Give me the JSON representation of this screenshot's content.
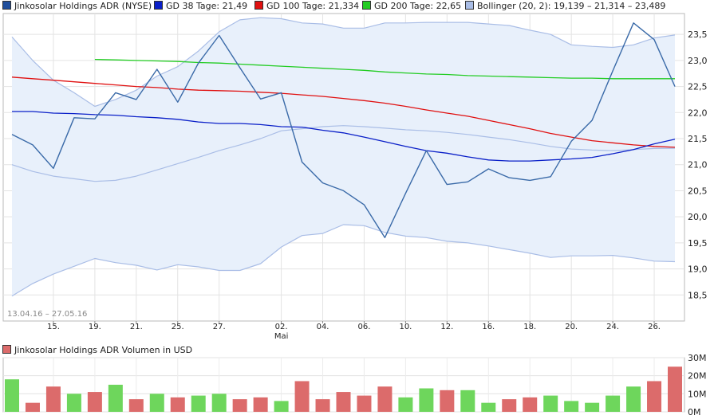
{
  "legend": [
    {
      "label": "Jinkosolar Holdings ADR (NYSE)",
      "color": "#1f4e9c"
    },
    {
      "label": "GD 38 Tage: 21,49",
      "color": "#0a1fc8"
    },
    {
      "label": "GD 100 Tage: 21,334",
      "color": "#e01010"
    },
    {
      "label": "GD 200 Tage: 22,65",
      "color": "#22cc22"
    },
    {
      "label": "Bollinger (20, 2): 19,139 – 21,314 – 23,489",
      "color": "#a9bde6"
    }
  ],
  "date_range": "13.04.16 – 27.05.16",
  "volume_label": "Jinkosolar Holdings ADR Volumen in USD",
  "colors": {
    "price": "#3a6aa8",
    "gd38": "#0a1fc8",
    "gd100": "#e01010",
    "gd200": "#22cc22",
    "band_fill": "#e8f0fb",
    "band_line": "#a9bde6",
    "vol_up": "#6ed65c",
    "vol_down": "#dc6b6b"
  },
  "chart_data": [
    {
      "type": "line",
      "title": "Jinkosolar Holdings ADR (NYSE)",
      "x": [
        "13.04",
        "14.04",
        "15.04",
        "18.04",
        "19.04",
        "20.04",
        "21.04",
        "22.04",
        "25.04",
        "26.04",
        "27.04",
        "28.04",
        "29.04",
        "02.05",
        "03.05",
        "04.05",
        "05.05",
        "06.05",
        "09.05",
        "10.05",
        "11.05",
        "12.05",
        "13.05",
        "16.05",
        "17.05",
        "18.05",
        "19.05",
        "20.05",
        "23.05",
        "24.05",
        "25.05",
        "26.05",
        "27.05"
      ],
      "xticks": [
        {
          "i": 2,
          "label": "15."
        },
        {
          "i": 4,
          "label": "19."
        },
        {
          "i": 6,
          "label": "21."
        },
        {
          "i": 8,
          "label": "25."
        },
        {
          "i": 10,
          "label": "27."
        },
        {
          "i": 13,
          "label": "02.",
          "sub": "Mai"
        },
        {
          "i": 15,
          "label": "04."
        },
        {
          "i": 17,
          "label": "06."
        },
        {
          "i": 19,
          "label": "10."
        },
        {
          "i": 21,
          "label": "12."
        },
        {
          "i": 23,
          "label": "16."
        },
        {
          "i": 25,
          "label": "18."
        },
        {
          "i": 27,
          "label": "20."
        },
        {
          "i": 29,
          "label": "24."
        },
        {
          "i": 31,
          "label": "26."
        }
      ],
      "ylim": [
        18.0,
        23.9
      ],
      "yticks": [
        "18,5",
        "19,0",
        "19,5",
        "20,0",
        "20,5",
        "21,0",
        "21,5",
        "22,0",
        "22,5",
        "23,0",
        "23,5"
      ],
      "ytick_values": [
        18.5,
        19.0,
        19.5,
        20.0,
        20.5,
        21.0,
        21.5,
        22.0,
        22.5,
        23.0,
        23.5
      ],
      "series": [
        {
          "name": "Jinkosolar Holdings ADR (NYSE)",
          "role": "price",
          "values": [
            21.58,
            21.38,
            20.93,
            21.9,
            21.88,
            22.38,
            22.25,
            22.83,
            22.2,
            22.95,
            23.48,
            22.86,
            22.26,
            22.38,
            21.05,
            20.65,
            20.5,
            20.23,
            19.6,
            20.45,
            21.27,
            20.62,
            20.67,
            20.92,
            20.75,
            20.7,
            20.77,
            21.45,
            21.85,
            22.8,
            23.72,
            23.4,
            22.5
          ]
        },
        {
          "name": "GD 38 Tage",
          "role": "gd38",
          "values": [
            22.02,
            22.02,
            21.99,
            21.98,
            21.96,
            21.95,
            21.92,
            21.9,
            21.87,
            21.82,
            21.79,
            21.79,
            21.77,
            21.73,
            21.72,
            21.66,
            21.61,
            21.53,
            21.44,
            21.35,
            21.27,
            21.22,
            21.15,
            21.09,
            21.07,
            21.07,
            21.09,
            21.11,
            21.14,
            21.21,
            21.29,
            21.4,
            21.49
          ]
        },
        {
          "name": "GD 100 Tage",
          "role": "gd100",
          "values": [
            22.68,
            22.65,
            22.62,
            22.59,
            22.56,
            22.53,
            22.5,
            22.48,
            22.45,
            22.43,
            22.42,
            22.41,
            22.39,
            22.37,
            22.34,
            22.31,
            22.27,
            22.23,
            22.18,
            22.12,
            22.05,
            21.99,
            21.93,
            21.85,
            21.77,
            21.69,
            21.6,
            21.53,
            21.46,
            21.42,
            21.38,
            21.35,
            21.334
          ]
        },
        {
          "name": "GD 200 Tage",
          "role": "gd200",
          "start": 4,
          "values": [
            null,
            null,
            null,
            null,
            23.02,
            23.01,
            23.0,
            22.99,
            22.98,
            22.96,
            22.95,
            22.93,
            22.91,
            22.89,
            22.87,
            22.85,
            22.83,
            22.81,
            22.78,
            22.76,
            22.74,
            22.73,
            22.71,
            22.7,
            22.69,
            22.68,
            22.67,
            22.66,
            22.66,
            22.65,
            22.65,
            22.65,
            22.65
          ]
        },
        {
          "name": "Bollinger oben",
          "role": "band_upper",
          "values": [
            23.45,
            23.0,
            22.62,
            22.38,
            22.12,
            22.25,
            22.43,
            22.7,
            22.88,
            23.18,
            23.55,
            23.78,
            23.82,
            23.8,
            23.72,
            23.7,
            23.62,
            23.62,
            23.72,
            23.72,
            23.73,
            23.73,
            23.73,
            23.7,
            23.67,
            23.58,
            23.5,
            23.3,
            23.27,
            23.25,
            23.3,
            23.43,
            23.489
          ]
        },
        {
          "name": "Bollinger Mitte",
          "role": "band_mid",
          "values": [
            21.0,
            20.87,
            20.78,
            20.73,
            20.68,
            20.7,
            20.78,
            20.9,
            21.02,
            21.14,
            21.27,
            21.38,
            21.5,
            21.65,
            21.69,
            21.73,
            21.75,
            21.73,
            21.7,
            21.67,
            21.65,
            21.62,
            21.58,
            21.53,
            21.48,
            21.42,
            21.35,
            21.3,
            21.28,
            21.27,
            21.29,
            21.31,
            21.314
          ]
        },
        {
          "name": "Bollinger unten",
          "role": "band_lower",
          "values": [
            18.48,
            18.72,
            18.9,
            19.05,
            19.2,
            19.12,
            19.07,
            18.98,
            19.08,
            19.04,
            18.97,
            18.97,
            19.1,
            19.42,
            19.64,
            19.68,
            19.85,
            19.83,
            19.7,
            19.63,
            19.6,
            19.53,
            19.5,
            19.44,
            19.37,
            19.3,
            19.22,
            19.25,
            19.25,
            19.26,
            19.21,
            19.15,
            19.139
          ]
        }
      ]
    },
    {
      "type": "bar",
      "title": "Jinkosolar Holdings ADR Volumen in USD",
      "ylim": [
        0,
        30
      ],
      "yticks": [
        "30M",
        "20M",
        "10M",
        "0M"
      ],
      "ytick_values": [
        30,
        20,
        10,
        0
      ],
      "x": [
        "13.04",
        "14.04",
        "15.04",
        "18.04",
        "19.04",
        "20.04",
        "21.04",
        "22.04",
        "25.04",
        "26.04",
        "27.04",
        "28.04",
        "29.04",
        "02.05",
        "03.05",
        "04.05",
        "05.05",
        "06.05",
        "09.05",
        "10.05",
        "11.05",
        "12.05",
        "13.05",
        "16.05",
        "17.05",
        "18.05",
        "19.05",
        "20.05",
        "23.05",
        "24.05",
        "25.05",
        "26.05",
        "27.05"
      ],
      "values": [
        18,
        5,
        14,
        10,
        11,
        15,
        7,
        10,
        8,
        9,
        10,
        7,
        8,
        6,
        17,
        7,
        11,
        9,
        14,
        8,
        13,
        12,
        12,
        5,
        7,
        8,
        9,
        6,
        5,
        9,
        14,
        17,
        25
      ],
      "up": [
        true,
        false,
        false,
        true,
        false,
        true,
        false,
        true,
        false,
        true,
        true,
        false,
        false,
        true,
        false,
        false,
        false,
        false,
        false,
        true,
        true,
        false,
        true,
        true,
        false,
        false,
        true,
        true,
        true,
        true,
        true,
        false,
        false
      ]
    }
  ]
}
